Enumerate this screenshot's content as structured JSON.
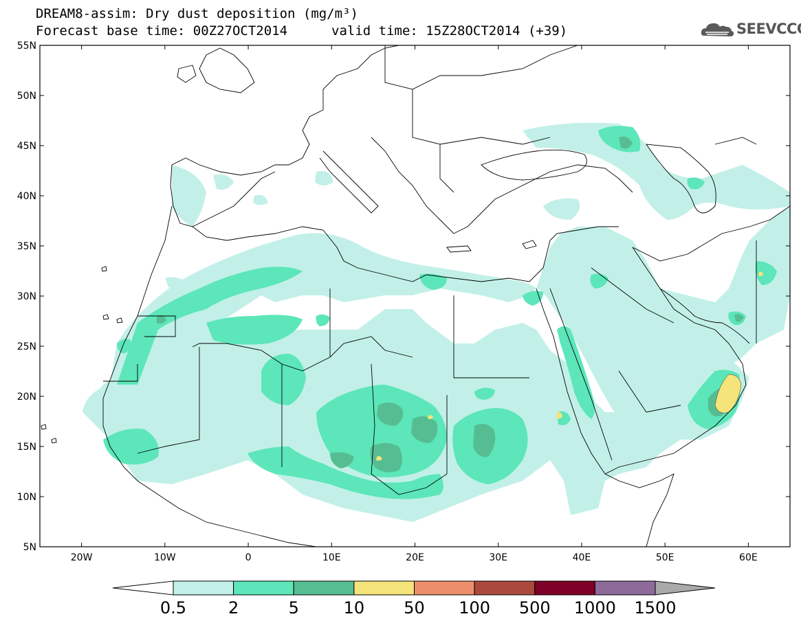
{
  "header": {
    "title": "DREAM8-assim: Dry dust deposition (mg/m³)",
    "base_time": "Forecast base time: 00Z27OCT2014",
    "valid_time": "valid time: 15Z28OCT2014 (+39)",
    "logo_text": "SEEVCCC",
    "logo_icon": "cloud-icon"
  },
  "map": {
    "lon_range": [
      -25,
      65
    ],
    "lat_range": [
      5,
      55
    ],
    "lat_ticks": [
      "55N",
      "50N",
      "45N",
      "40N",
      "35N",
      "30N",
      "25N",
      "20N",
      "15N",
      "10N",
      "5N"
    ],
    "lon_ticks": [
      "20W",
      "10W",
      "0",
      "10E",
      "20E",
      "30E",
      "40E",
      "50E",
      "60E"
    ],
    "land_fill": "#ffffff",
    "border_color": "#000000"
  },
  "colorbar": {
    "labels": [
      "0.5",
      "2",
      "5",
      "10",
      "50",
      "100",
      "500",
      "1000",
      "1500"
    ],
    "colors": [
      "#c2f0e8",
      "#5ce6b9",
      "#56bd92",
      "#f5e47a",
      "#ec8e6b",
      "#ab4a3c",
      "#7e0026",
      "#8e6a9b",
      "#a9a9a9"
    ]
  },
  "dust_levels": {
    "light": "#c2f0e8",
    "medium": "#5ce6b9",
    "dark": "#56bd92",
    "high": "#f5e47a"
  }
}
